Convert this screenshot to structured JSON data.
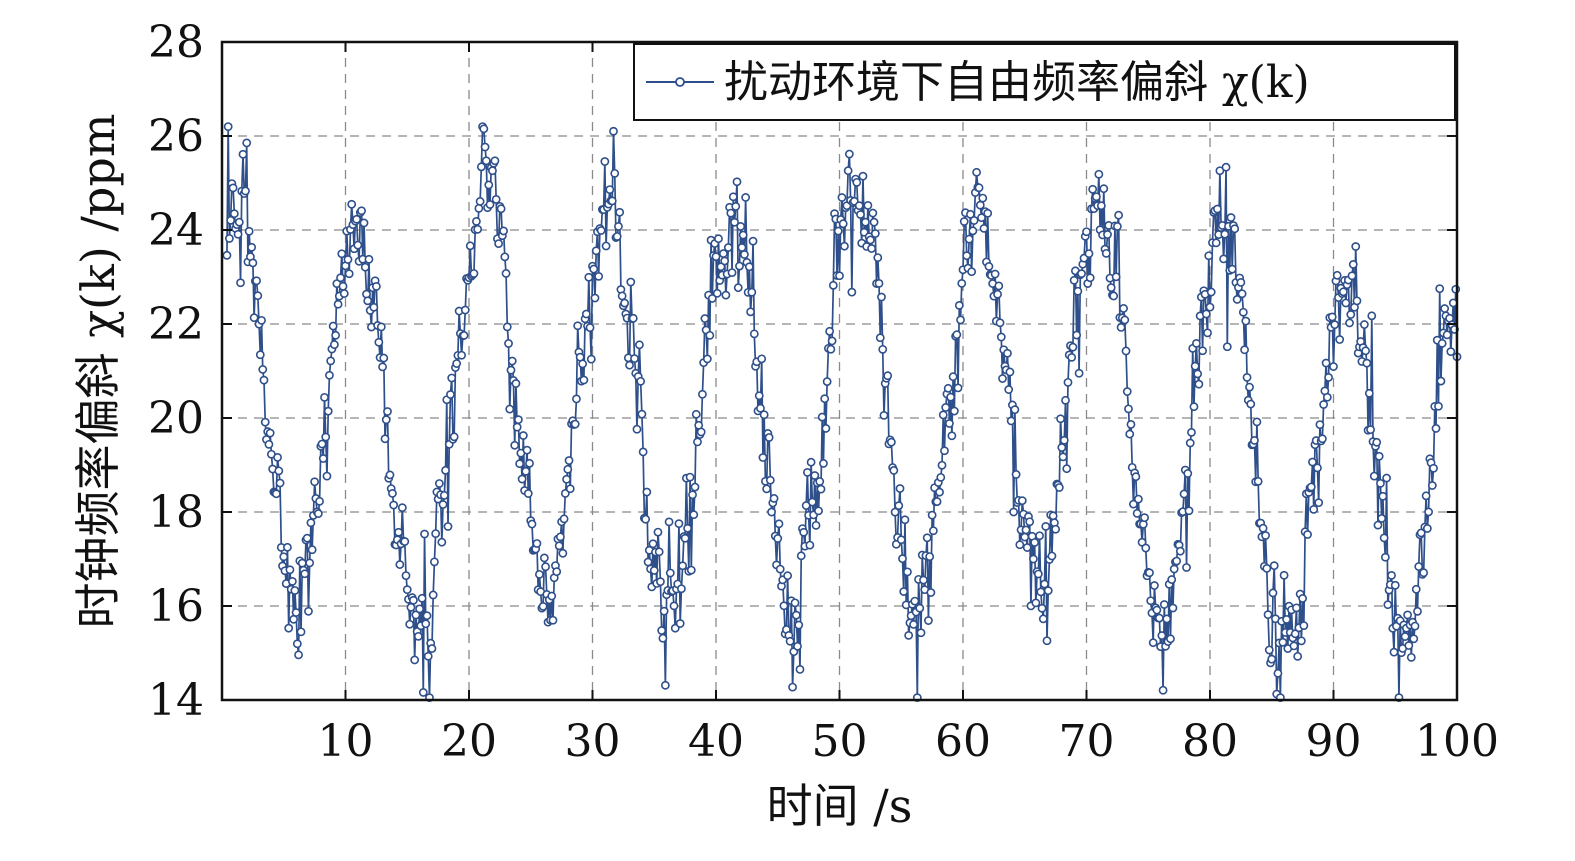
{
  "chart_data": {
    "type": "line",
    "title": "",
    "xlabel": "时间 /s",
    "ylabel": "时钟频率偏斜 χ(k) /ppm",
    "xlim": [
      0,
      100
    ],
    "ylim": [
      14,
      28
    ],
    "xticks": [
      10,
      20,
      30,
      40,
      50,
      60,
      70,
      80,
      90,
      100
    ],
    "yticks": [
      14,
      16,
      18,
      20,
      22,
      24,
      26,
      28
    ],
    "grid": true,
    "legend_position": "top-right",
    "series_color": "#2e4f8a",
    "marker": "open-circle",
    "sample_interval_s": 0.1,
    "envelope": {
      "period_s": 10,
      "peaks": [
        {
          "t": 1.0,
          "value": 25.0
        },
        {
          "t": 11.0,
          "value": 23.7
        },
        {
          "t": 21.5,
          "value": 24.9
        },
        {
          "t": 31.5,
          "value": 24.3
        },
        {
          "t": 41.5,
          "value": 24.2
        },
        {
          "t": 51.5,
          "value": 24.9
        },
        {
          "t": 61.5,
          "value": 24.3
        },
        {
          "t": 71.0,
          "value": 24.6
        },
        {
          "t": 81.0,
          "value": 24.2
        },
        {
          "t": 91.0,
          "value": 23.1
        }
      ],
      "troughs": [
        {
          "t": 6.0,
          "value": 16.4
        },
        {
          "t": 16.0,
          "value": 15.5
        },
        {
          "t": 26.0,
          "value": 16.2
        },
        {
          "t": 36.0,
          "value": 16.0
        },
        {
          "t": 46.0,
          "value": 15.8
        },
        {
          "t": 56.0,
          "value": 16.0
        },
        {
          "t": 66.0,
          "value": 16.0
        },
        {
          "t": 76.0,
          "value": 15.6
        },
        {
          "t": 86.0,
          "value": 15.0
        },
        {
          "t": 96.0,
          "value": 15.5
        }
      ],
      "end": {
        "t": 100,
        "value": 22.2
      },
      "noise_amplitude_ppm": 0.9,
      "spike_amplitude_ppm": 1.4
    },
    "series": [
      {
        "name": "扰动环境下自由频率偏斜 χ(k)"
      }
    ]
  }
}
